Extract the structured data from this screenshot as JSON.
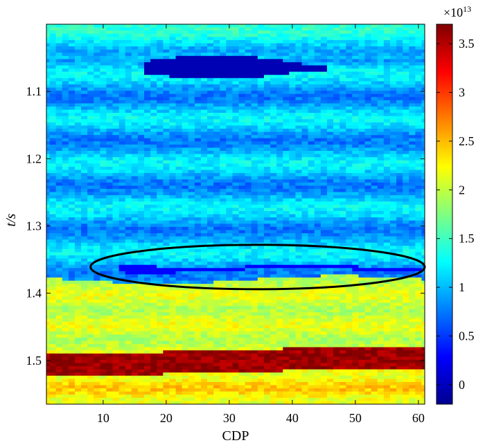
{
  "chart_data": {
    "type": "heatmap",
    "xlabel": "CDP",
    "ylabel": "t/s",
    "xlim": [
      1,
      61
    ],
    "ylim": [
      1.565,
      1.0
    ],
    "x_ticks": [
      10,
      20,
      30,
      40,
      50,
      60
    ],
    "y_ticks": [
      1.1,
      1.2,
      1.3,
      1.4,
      1.5
    ],
    "x_tick_labels": [
      "10",
      "20",
      "30",
      "40",
      "50",
      "60"
    ],
    "y_tick_labels": [
      "1.1",
      "1.2",
      "1.3",
      "1.4",
      "1.5"
    ],
    "colorbar": {
      "range": [
        -0.2,
        3.7
      ],
      "ticks": [
        0,
        0.5,
        1,
        1.5,
        2,
        2.5,
        3,
        3.5
      ],
      "tick_labels": [
        "0",
        "0.5",
        "1",
        "1.5",
        "2",
        "2.5",
        "3",
        "3.5"
      ],
      "exponent_base": "×10",
      "exponent_power": "13",
      "colormap": "jet"
    },
    "layers": [
      {
        "name": "upper",
        "t_top": 1.0,
        "t_bottom": 1.38,
        "value": 1.0
      },
      {
        "name": "middle",
        "t_top": 1.38,
        "t_bottom": 1.49,
        "value": 2.05
      },
      {
        "name": "high-band",
        "t_top": 1.49,
        "t_bottom": 1.52,
        "value": 3.6
      },
      {
        "name": "lower",
        "t_top": 1.52,
        "t_bottom": 1.565,
        "value": 2.3
      }
    ],
    "anomalies": [
      {
        "name": "low-top",
        "cdp_start": 17,
        "cdp_end": 45,
        "t_center": 1.064,
        "value": 0.0
      },
      {
        "name": "low-thin",
        "cdp_start": 13,
        "cdp_end": 60,
        "t_center": 1.363,
        "value": 0.3
      }
    ],
    "annotation": {
      "shape": "ellipse",
      "cdp_center": 34.5,
      "t_center": 1.361,
      "cdp_half_width": 26.5,
      "t_half_height": 0.033
    }
  }
}
